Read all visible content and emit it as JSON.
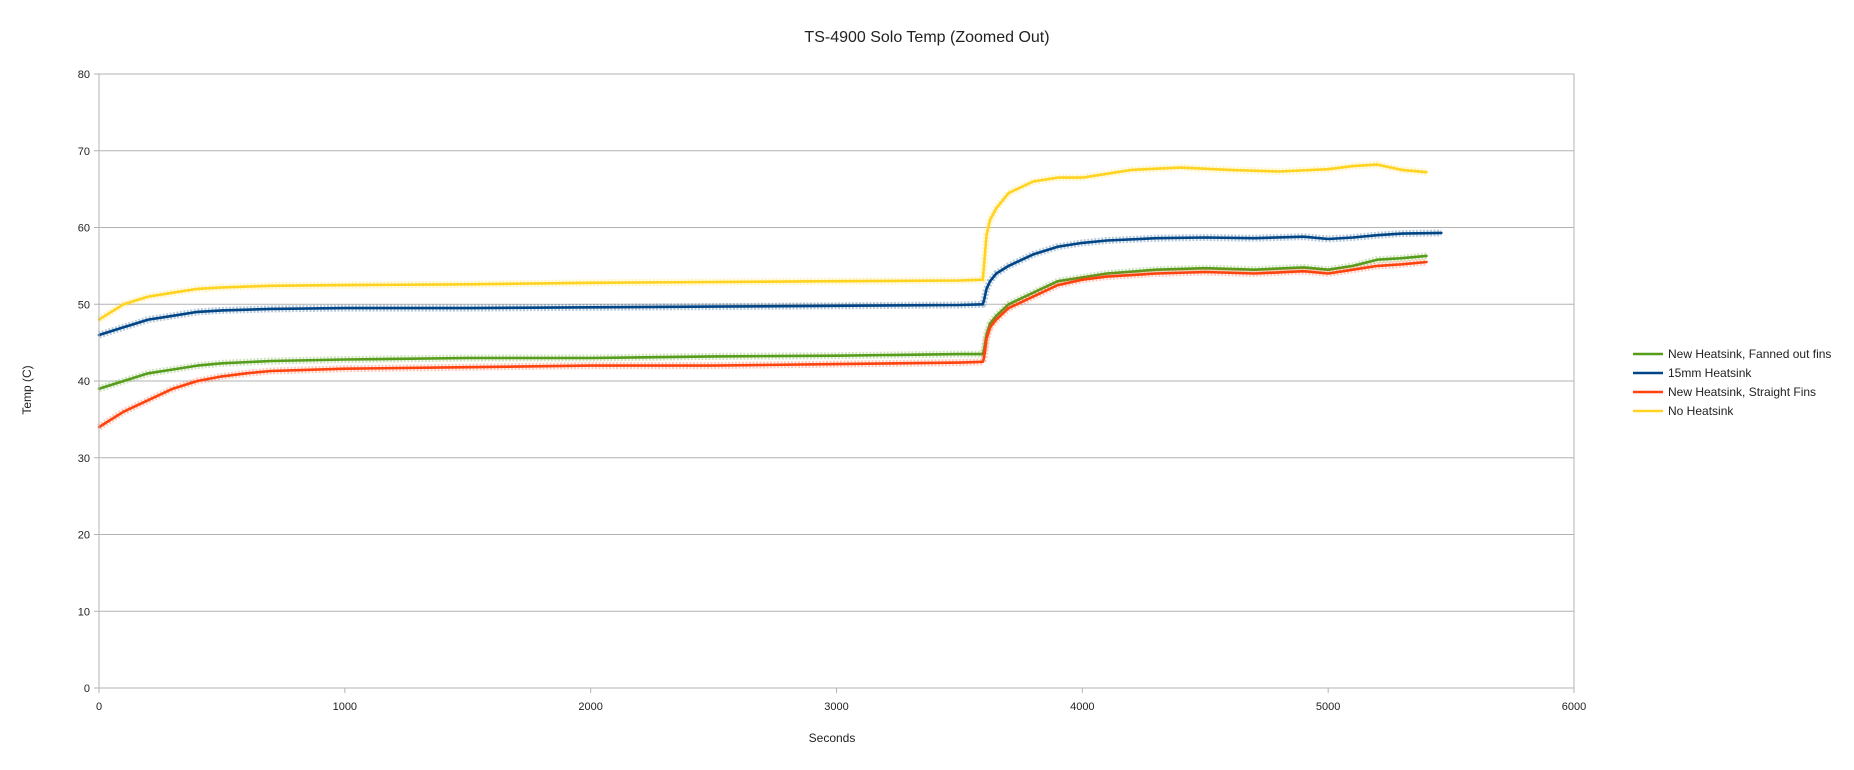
{
  "chart_data": {
    "type": "line",
    "title": "TS-4900 Solo Temp (Zoomed Out)",
    "xlabel": "Seconds",
    "ylabel": "Temp (C)",
    "xlim": [
      0,
      6000
    ],
    "ylim": [
      0,
      80
    ],
    "xticks": [
      "0",
      "1000",
      "2000",
      "3000",
      "4000",
      "5000",
      "6000"
    ],
    "yticks": [
      "0",
      "10",
      "20",
      "30",
      "40",
      "50",
      "60",
      "70",
      "80"
    ],
    "grid": "horizontal",
    "legend_position": "right",
    "series": [
      {
        "name": "New Heatsink, Fanned out fins",
        "color": "#579d1c",
        "points": [
          [
            0,
            39
          ],
          [
            100,
            40
          ],
          [
            200,
            41
          ],
          [
            300,
            41.5
          ],
          [
            400,
            42
          ],
          [
            500,
            42.3
          ],
          [
            700,
            42.6
          ],
          [
            1000,
            42.8
          ],
          [
            1500,
            43
          ],
          [
            2000,
            43
          ],
          [
            2500,
            43.2
          ],
          [
            3000,
            43.3
          ],
          [
            3500,
            43.5
          ],
          [
            3595,
            43.5
          ],
          [
            3600,
            44
          ],
          [
            3610,
            46
          ],
          [
            3625,
            47.5
          ],
          [
            3650,
            48.5
          ],
          [
            3700,
            50
          ],
          [
            3800,
            51.5
          ],
          [
            3900,
            53
          ],
          [
            4000,
            53.5
          ],
          [
            4100,
            54
          ],
          [
            4300,
            54.5
          ],
          [
            4500,
            54.7
          ],
          [
            4700,
            54.5
          ],
          [
            4900,
            54.8
          ],
          [
            5000,
            54.5
          ],
          [
            5100,
            55
          ],
          [
            5200,
            55.8
          ],
          [
            5300,
            56
          ],
          [
            5400,
            56.3
          ]
        ]
      },
      {
        "name": "15mm Heatsink",
        "color": "#004586",
        "points": [
          [
            0,
            46
          ],
          [
            100,
            47
          ],
          [
            200,
            48
          ],
          [
            300,
            48.5
          ],
          [
            400,
            49
          ],
          [
            500,
            49.2
          ],
          [
            700,
            49.4
          ],
          [
            1000,
            49.5
          ],
          [
            1500,
            49.5
          ],
          [
            2000,
            49.6
          ],
          [
            2500,
            49.7
          ],
          [
            3000,
            49.8
          ],
          [
            3500,
            49.9
          ],
          [
            3595,
            50
          ],
          [
            3600,
            50.5
          ],
          [
            3610,
            52
          ],
          [
            3625,
            53
          ],
          [
            3650,
            54
          ],
          [
            3700,
            55
          ],
          [
            3800,
            56.5
          ],
          [
            3900,
            57.5
          ],
          [
            4000,
            58
          ],
          [
            4100,
            58.3
          ],
          [
            4300,
            58.6
          ],
          [
            4500,
            58.7
          ],
          [
            4700,
            58.6
          ],
          [
            4900,
            58.8
          ],
          [
            5000,
            58.5
          ],
          [
            5100,
            58.7
          ],
          [
            5200,
            59
          ],
          [
            5300,
            59.2
          ],
          [
            5460,
            59.3
          ]
        ]
      },
      {
        "name": "New Heatsink, Straight Fins",
        "color": "#ff420e",
        "points": [
          [
            0,
            34
          ],
          [
            50,
            35
          ],
          [
            100,
            36
          ],
          [
            200,
            37.5
          ],
          [
            300,
            39
          ],
          [
            400,
            40
          ],
          [
            500,
            40.6
          ],
          [
            600,
            41
          ],
          [
            700,
            41.3
          ],
          [
            1000,
            41.6
          ],
          [
            1500,
            41.8
          ],
          [
            2000,
            42
          ],
          [
            2500,
            42
          ],
          [
            3000,
            42.2
          ],
          [
            3500,
            42.4
          ],
          [
            3595,
            42.5
          ],
          [
            3600,
            43
          ],
          [
            3610,
            45.5
          ],
          [
            3625,
            47
          ],
          [
            3650,
            48
          ],
          [
            3700,
            49.5
          ],
          [
            3800,
            51
          ],
          [
            3900,
            52.5
          ],
          [
            4000,
            53.2
          ],
          [
            4100,
            53.6
          ],
          [
            4300,
            54
          ],
          [
            4500,
            54.2
          ],
          [
            4700,
            54
          ],
          [
            4900,
            54.3
          ],
          [
            5000,
            54
          ],
          [
            5100,
            54.5
          ],
          [
            5200,
            55
          ],
          [
            5300,
            55.2
          ],
          [
            5400,
            55.5
          ]
        ]
      },
      {
        "name": "No Heatsink",
        "color": "#ffd320",
        "points": [
          [
            0,
            48
          ],
          [
            50,
            49
          ],
          [
            100,
            50
          ],
          [
            200,
            51
          ],
          [
            300,
            51.5
          ],
          [
            400,
            52
          ],
          [
            500,
            52.2
          ],
          [
            700,
            52.4
          ],
          [
            1000,
            52.5
          ],
          [
            1500,
            52.6
          ],
          [
            2000,
            52.8
          ],
          [
            2500,
            52.9
          ],
          [
            3000,
            53
          ],
          [
            3500,
            53.1
          ],
          [
            3595,
            53.2
          ],
          [
            3600,
            55
          ],
          [
            3610,
            59
          ],
          [
            3625,
            61
          ],
          [
            3650,
            62.5
          ],
          [
            3700,
            64.5
          ],
          [
            3800,
            66
          ],
          [
            3900,
            66.5
          ],
          [
            4000,
            66.5
          ],
          [
            4100,
            67
          ],
          [
            4200,
            67.5
          ],
          [
            4400,
            67.8
          ],
          [
            4600,
            67.5
          ],
          [
            4800,
            67.3
          ],
          [
            5000,
            67.6
          ],
          [
            5100,
            68
          ],
          [
            5200,
            68.2
          ],
          [
            5300,
            67.5
          ],
          [
            5400,
            67.2
          ]
        ]
      }
    ]
  }
}
